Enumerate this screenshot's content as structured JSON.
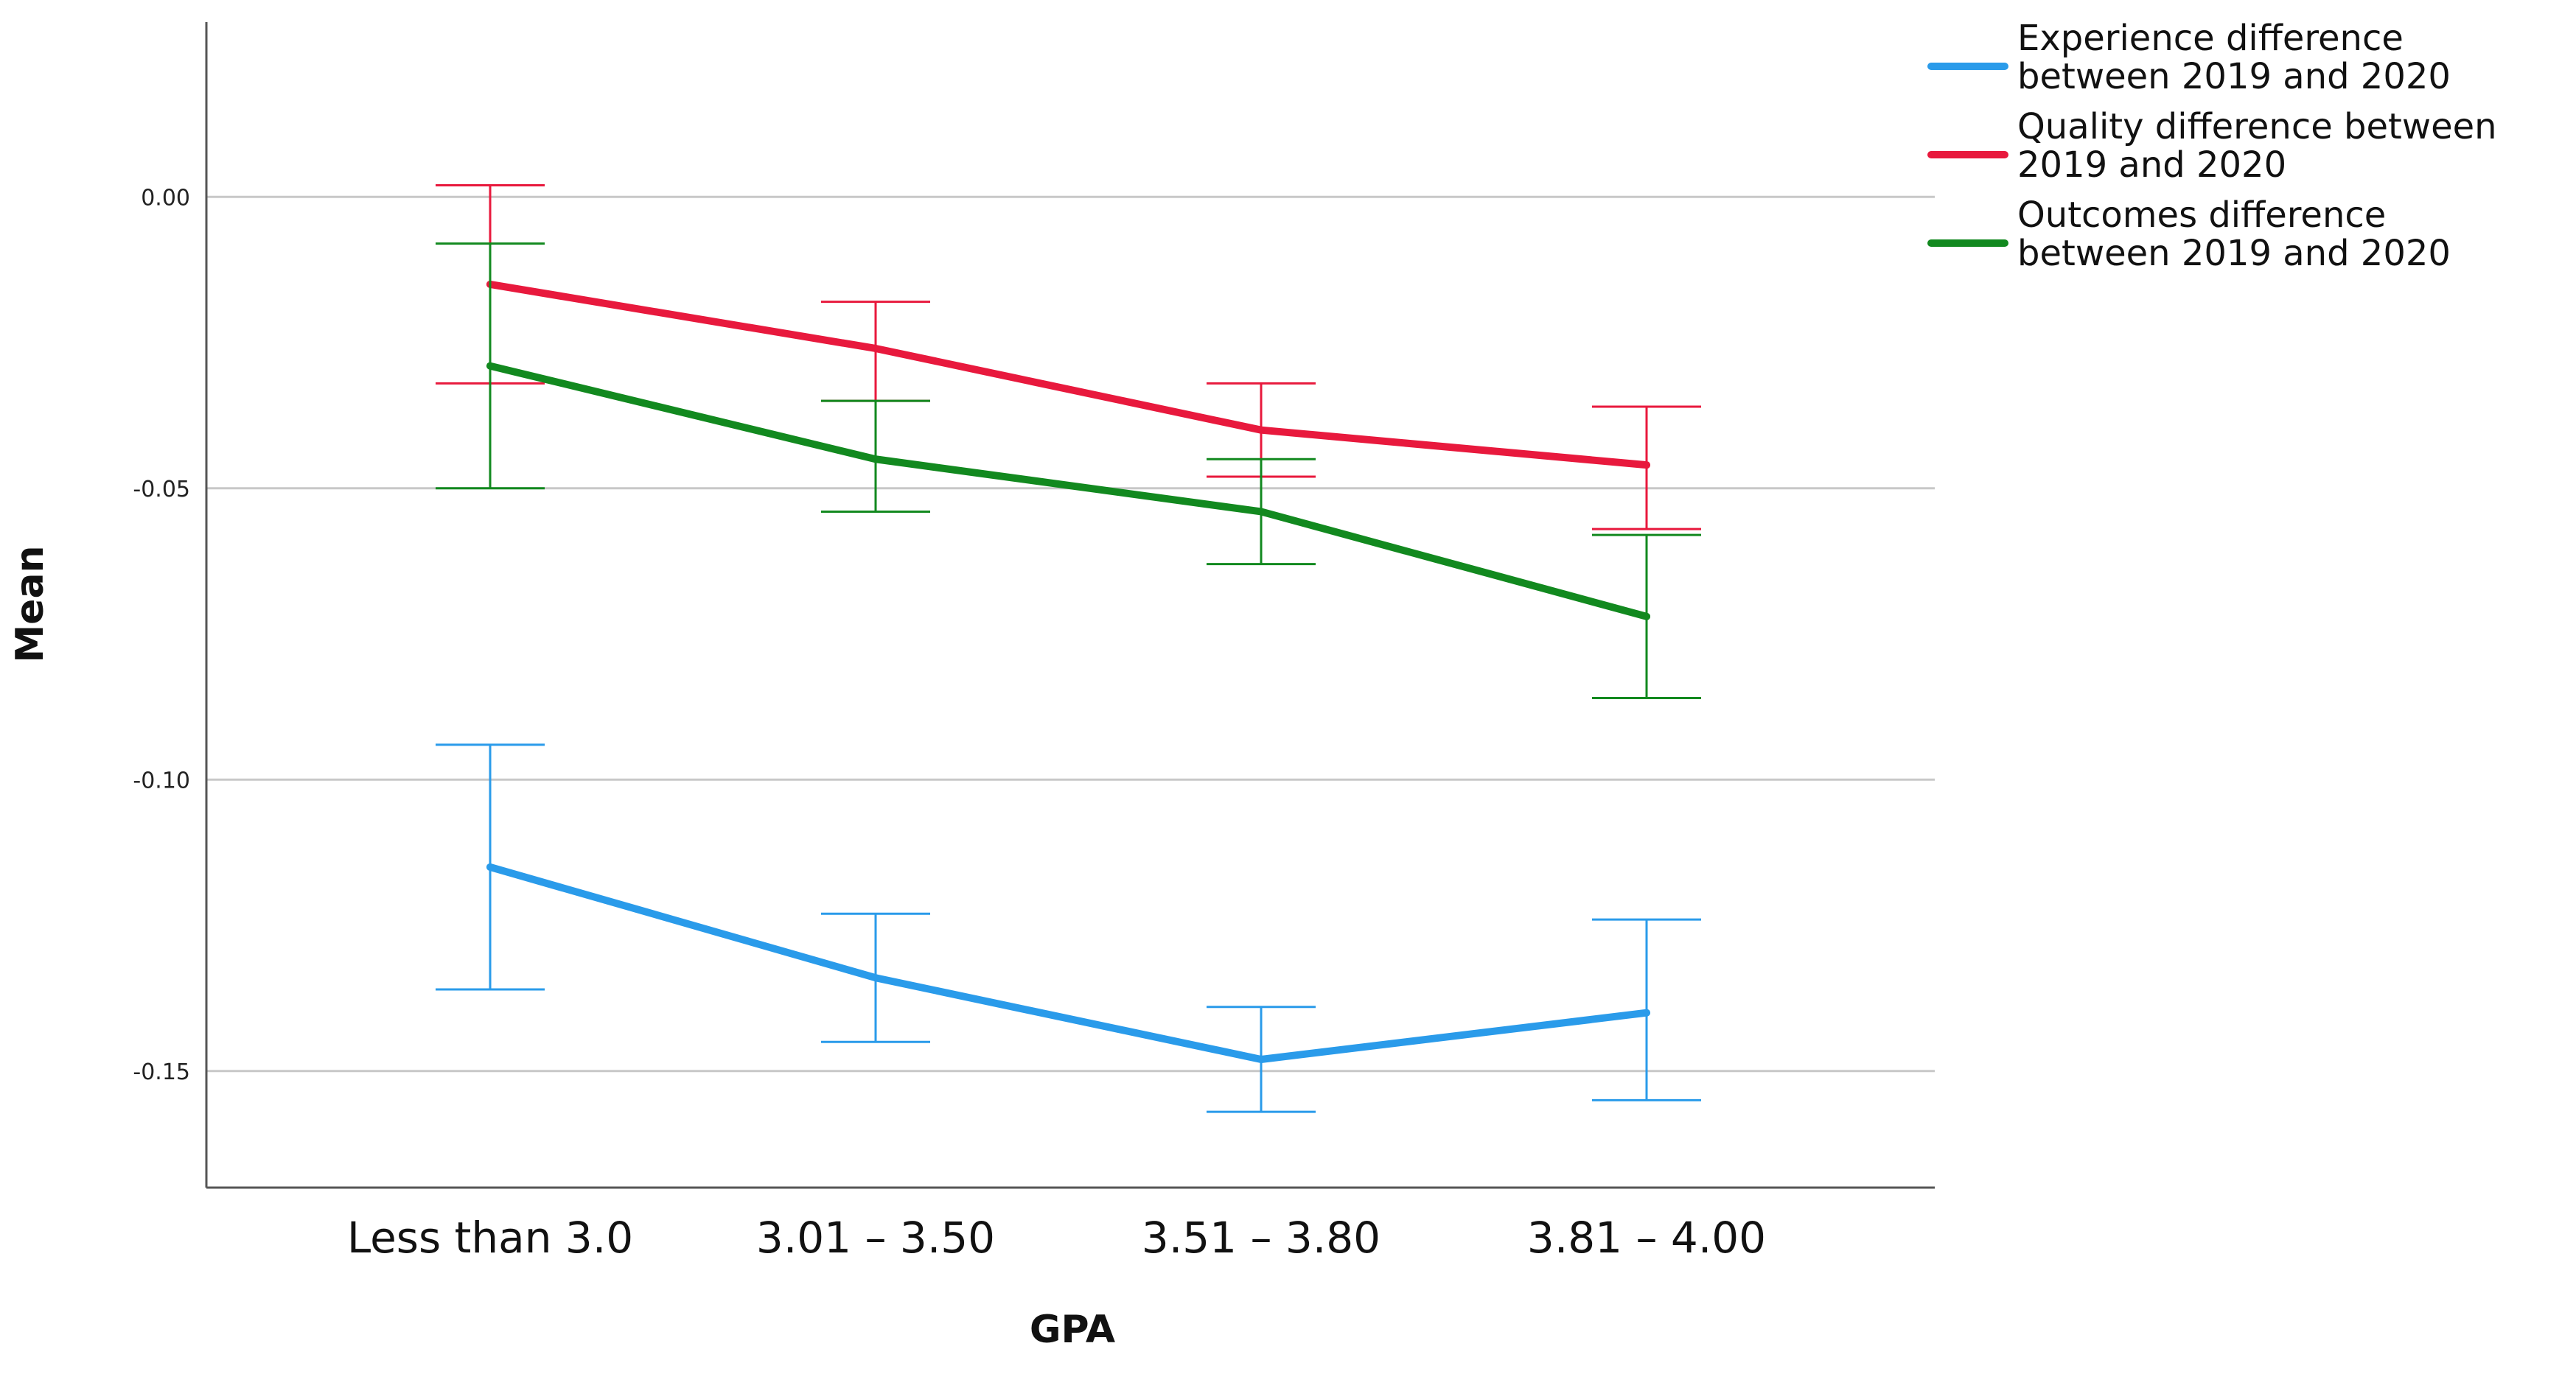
{
  "chart_data": {
    "type": "line",
    "title": "",
    "xlabel": "GPA",
    "ylabel": "Mean",
    "categories": [
      "Less than 3.0",
      "3.01 – 3.50",
      "3.51 – 3.80",
      "3.81 – 4.00"
    ],
    "ylim": [
      -0.17,
      0.03
    ],
    "yticks": [
      0.0,
      -0.05,
      -0.1,
      -0.15
    ],
    "ytick_labels": [
      "0.00",
      "-0.05",
      "-0.10",
      "-0.15"
    ],
    "grid": true,
    "legend_position": "top-right",
    "error_bars": true,
    "series": [
      {
        "name": "Experience difference between 2019 and 2020",
        "legend_lines": [
          "Experience difference",
          "between 2019 and 2020"
        ],
        "color": "#2A9BEA",
        "values": [
          -0.115,
          -0.134,
          -0.148,
          -0.14
        ],
        "upper": [
          -0.094,
          -0.123,
          -0.139,
          -0.124
        ],
        "lower": [
          -0.136,
          -0.145,
          -0.157,
          -0.155
        ]
      },
      {
        "name": "Quality difference between 2019 and 2020",
        "legend_lines": [
          "Quality difference between",
          "2019 and 2020"
        ],
        "color": "#E8193D",
        "values": [
          -0.015,
          -0.026,
          -0.04,
          -0.046
        ],
        "upper": [
          0.002,
          -0.018,
          -0.032,
          -0.036
        ],
        "lower": [
          -0.032,
          -0.035,
          -0.048,
          -0.057
        ]
      },
      {
        "name": "Outcomes difference between 2019 and 2020",
        "legend_lines": [
          "Outcomes difference",
          "between 2019 and 2020"
        ],
        "color": "#12891F",
        "values": [
          -0.029,
          -0.045,
          -0.054,
          -0.072
        ],
        "upper": [
          -0.008,
          -0.035,
          -0.045,
          -0.058
        ],
        "lower": [
          -0.05,
          -0.054,
          -0.063,
          -0.086
        ]
      }
    ]
  }
}
